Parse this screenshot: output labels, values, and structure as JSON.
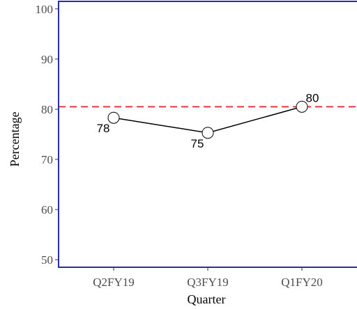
{
  "chart_data": {
    "type": "line",
    "xlabel": "Quarter",
    "ylabel": "Percentage",
    "categories": [
      "Q2FY19",
      "Q3FY19",
      "Q1FY20"
    ],
    "series": [
      {
        "values": [
          78.3,
          75.3,
          80.5
        ],
        "labels": [
          "78",
          "75",
          "80"
        ]
      }
    ],
    "reference_line": {
      "value": 80.5,
      "style": "dashed",
      "color": "#e8383d"
    },
    "ylim": [
      48.5,
      101.5
    ],
    "yticks": [
      50,
      60,
      70,
      80,
      90,
      100
    ],
    "grid": false,
    "legend": "none",
    "colors": {
      "line": "#000000",
      "frame": "#2c2ca8",
      "marker_fill": "#ffffff",
      "tick_text": "#4d4d4d"
    }
  }
}
